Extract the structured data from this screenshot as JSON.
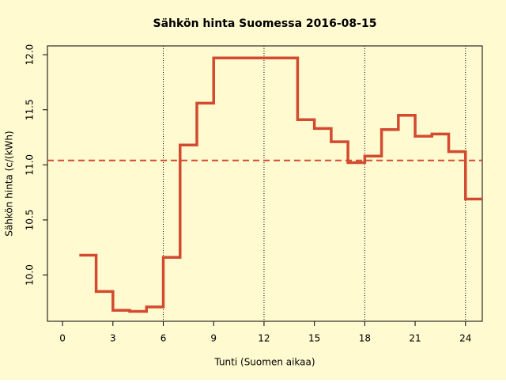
{
  "chart_data": {
    "type": "step",
    "title": "Sähkön hinta Suomessa 2016-08-15",
    "x_label": "Tunti (Suomen aikaa)",
    "y_label": "Sähkön hinta (c/(kWh)",
    "x": [
      1,
      2,
      3,
      4,
      5,
      6,
      7,
      8,
      9,
      10,
      11,
      12,
      13,
      14,
      15,
      16,
      17,
      18,
      19,
      20,
      21,
      22,
      23,
      24,
      25
    ],
    "series": [
      {
        "color": "#d24b30",
        "values": [
          10.18,
          9.85,
          9.68,
          9.67,
          9.71,
          10.16,
          11.18,
          11.56,
          11.97,
          11.97,
          11.97,
          11.97,
          11.97,
          11.41,
          11.33,
          11.21,
          11.02,
          11.08,
          11.32,
          11.45,
          11.26,
          11.28,
          11.12,
          10.69,
          10.69
        ]
      }
    ],
    "mean_line": 11.04,
    "xlim": [
      -0.9,
      25
    ],
    "ylim": [
      9.58,
      12.08
    ],
    "xticks": [
      0,
      3,
      6,
      9,
      12,
      15,
      18,
      21,
      24
    ],
    "yticks": [
      {
        "value": 10,
        "label": "10.0"
      },
      10.5,
      {
        "value": 11,
        "label": "11.0"
      },
      11.5,
      {
        "value": 12,
        "label": "12.0"
      }
    ],
    "x_grid": [
      6,
      12,
      18,
      24
    ],
    "background": "#fffad0"
  }
}
